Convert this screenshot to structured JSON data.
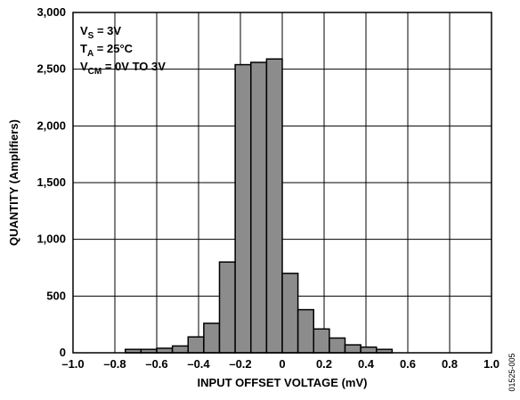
{
  "chart_data": {
    "type": "bar",
    "title": "",
    "xlabel": "INPUT OFFSET VOLTAGE (mV)",
    "ylabel": "QUANTITY (Amplifiers)",
    "xlim": [
      -1.0,
      1.0
    ],
    "ylim": [
      0,
      3000
    ],
    "grid": true,
    "bin_width": 0.075,
    "bins": [
      {
        "x0": -0.75,
        "x1": -0.675,
        "value": 30
      },
      {
        "x0": -0.675,
        "x1": -0.6,
        "value": 30
      },
      {
        "x0": -0.6,
        "x1": -0.525,
        "value": 40
      },
      {
        "x0": -0.525,
        "x1": -0.45,
        "value": 60
      },
      {
        "x0": -0.45,
        "x1": -0.375,
        "value": 140
      },
      {
        "x0": -0.375,
        "x1": -0.3,
        "value": 260
      },
      {
        "x0": -0.3,
        "x1": -0.225,
        "value": 800
      },
      {
        "x0": -0.225,
        "x1": -0.15,
        "value": 2540
      },
      {
        "x0": -0.15,
        "x1": -0.075,
        "value": 2560
      },
      {
        "x0": -0.075,
        "x1": 0.0,
        "value": 2590
      },
      {
        "x0": 0.0,
        "x1": 0.075,
        "value": 700
      },
      {
        "x0": 0.075,
        "x1": 0.15,
        "value": 380
      },
      {
        "x0": 0.15,
        "x1": 0.225,
        "value": 210
      },
      {
        "x0": 0.225,
        "x1": 0.3,
        "value": 130
      },
      {
        "x0": 0.3,
        "x1": 0.375,
        "value": 70
      },
      {
        "x0": 0.375,
        "x1": 0.45,
        "value": 50
      },
      {
        "x0": 0.45,
        "x1": 0.525,
        "value": 30
      }
    ],
    "x_ticks": [
      {
        "value": -1.0,
        "label": "–1.0"
      },
      {
        "value": -0.8,
        "label": "–0.8"
      },
      {
        "value": -0.6,
        "label": "–0.6"
      },
      {
        "value": -0.4,
        "label": "–0.4"
      },
      {
        "value": -0.2,
        "label": "–0.2"
      },
      {
        "value": 0.0,
        "label": "0"
      },
      {
        "value": 0.2,
        "label": "0.2"
      },
      {
        "value": 0.4,
        "label": "0.4"
      },
      {
        "value": 0.6,
        "label": "0.6"
      },
      {
        "value": 0.8,
        "label": "0.8"
      },
      {
        "value": 1.0,
        "label": "1.0"
      }
    ],
    "y_ticks": [
      {
        "value": 0,
        "label": "0"
      },
      {
        "value": 500,
        "label": "500"
      },
      {
        "value": 1000,
        "label": "1,000"
      },
      {
        "value": 1500,
        "label": "1,500"
      },
      {
        "value": 2000,
        "label": "2,000"
      },
      {
        "value": 2500,
        "label": "2,500"
      },
      {
        "value": 3000,
        "label": "3,000"
      }
    ],
    "annotations": [
      {
        "main": "V",
        "sub": "S",
        "rest": " = 3V"
      },
      {
        "main": "T",
        "sub": "A",
        "rest": " = 25°C"
      },
      {
        "main": "V",
        "sub": "CM",
        "rest": " = 0V TO 3V"
      }
    ],
    "figure_code": "01525-005",
    "colors": {
      "bar_fill": "#8c8c8c",
      "bar_edge": "#000000",
      "grid": "#000000"
    }
  }
}
